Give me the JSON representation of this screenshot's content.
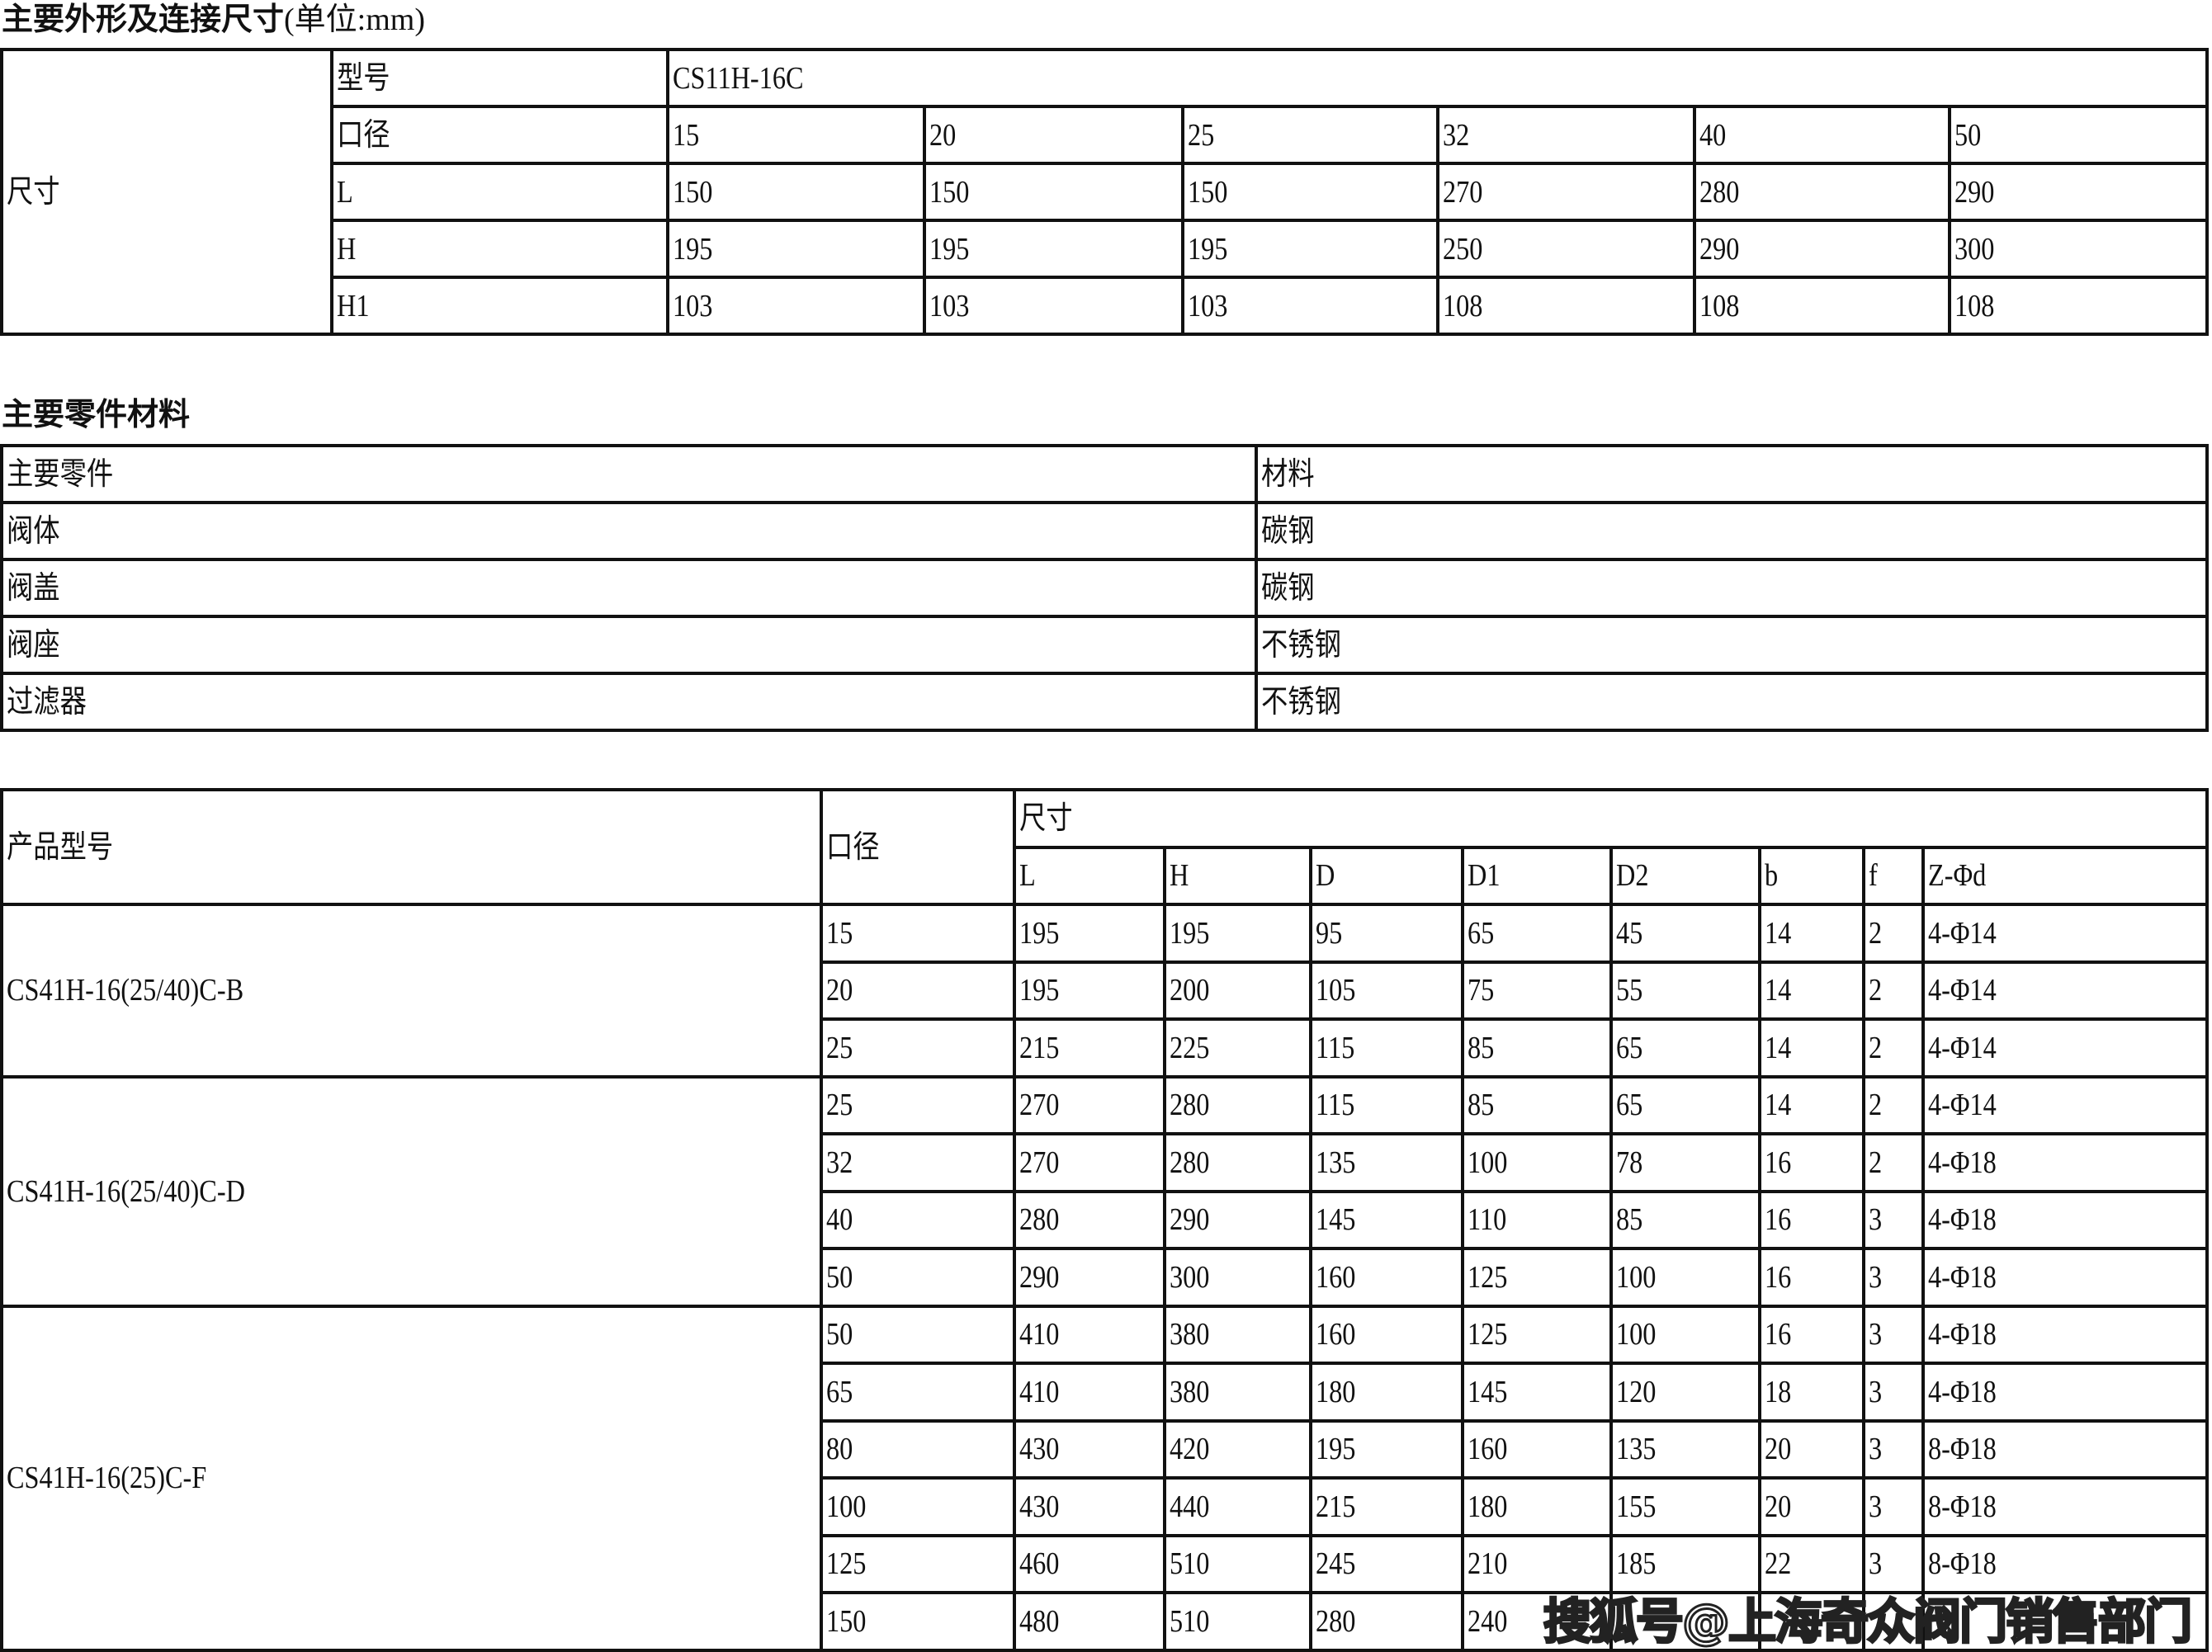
{
  "dims_section": {
    "title": "主要外形及连接尺寸",
    "unit": "(单位:mm)",
    "row_group_label": "尺寸",
    "rows": [
      {
        "label": "型号",
        "values": [
          "CS11H-16C"
        ]
      },
      {
        "label": "口径",
        "values": [
          "15",
          "20",
          "25",
          "32",
          "40",
          "50"
        ]
      },
      {
        "label": "L",
        "values": [
          "150",
          "150",
          "150",
          "270",
          "280",
          "290"
        ]
      },
      {
        "label": "H",
        "values": [
          "195",
          "195",
          "195",
          "250",
          "290",
          "300"
        ]
      },
      {
        "label": "H1",
        "values": [
          "103",
          "103",
          "103",
          "108",
          "108",
          "108"
        ]
      }
    ]
  },
  "materials_section": {
    "title": "主要零件材料",
    "header": [
      "主要零件",
      "材料"
    ],
    "rows": [
      [
        "阀体",
        "碳钢"
      ],
      [
        "阀盖",
        "碳钢"
      ],
      [
        "阀座",
        "不锈钢"
      ],
      [
        "过滤器",
        "不锈钢"
      ]
    ]
  },
  "flange_section": {
    "header_model": "产品型号",
    "header_dn": "口径",
    "header_dims": "尺寸",
    "columns": [
      "L",
      "H",
      "D",
      "D1",
      "D2",
      "b",
      "f",
      "Z-Φd"
    ],
    "groups": [
      {
        "model": "CS41H-16(25/40)C-B",
        "rows": [
          [
            "15",
            "195",
            "195",
            "95",
            "65",
            "45",
            "14",
            "2",
            "4-Φ14"
          ],
          [
            "20",
            "195",
            "200",
            "105",
            "75",
            "55",
            "14",
            "2",
            "4-Φ14"
          ],
          [
            "25",
            "215",
            "225",
            "115",
            "85",
            "65",
            "14",
            "2",
            "4-Φ14"
          ]
        ]
      },
      {
        "model": "CS41H-16(25/40)C-D",
        "rows": [
          [
            "25",
            "270",
            "280",
            "115",
            "85",
            "65",
            "14",
            "2",
            "4-Φ14"
          ],
          [
            "32",
            "270",
            "280",
            "135",
            "100",
            "78",
            "16",
            "2",
            "4-Φ18"
          ],
          [
            "40",
            "280",
            "290",
            "145",
            "110",
            "85",
            "16",
            "3",
            "4-Φ18"
          ],
          [
            "50",
            "290",
            "300",
            "160",
            "125",
            "100",
            "16",
            "3",
            "4-Φ18"
          ]
        ]
      },
      {
        "model": "CS41H-16(25)C-F",
        "rows": [
          [
            "50",
            "410",
            "380",
            "160",
            "125",
            "100",
            "16",
            "3",
            "4-Φ18"
          ],
          [
            "65",
            "410",
            "380",
            "180",
            "145",
            "120",
            "18",
            "3",
            "4-Φ18"
          ],
          [
            "80",
            "430",
            "420",
            "195",
            "160",
            "135",
            "20",
            "3",
            "8-Φ18"
          ],
          [
            "100",
            "430",
            "440",
            "215",
            "180",
            "155",
            "20",
            "3",
            "8-Φ18"
          ],
          [
            "125",
            "460",
            "510",
            "245",
            "210",
            "185",
            "22",
            "3",
            "8-Φ18"
          ],
          [
            "150",
            "480",
            "510",
            "280",
            "240",
            "",
            "",
            "",
            ""
          ]
        ]
      }
    ]
  },
  "watermark": "搜狐号@上海奇众阀门销售部门"
}
